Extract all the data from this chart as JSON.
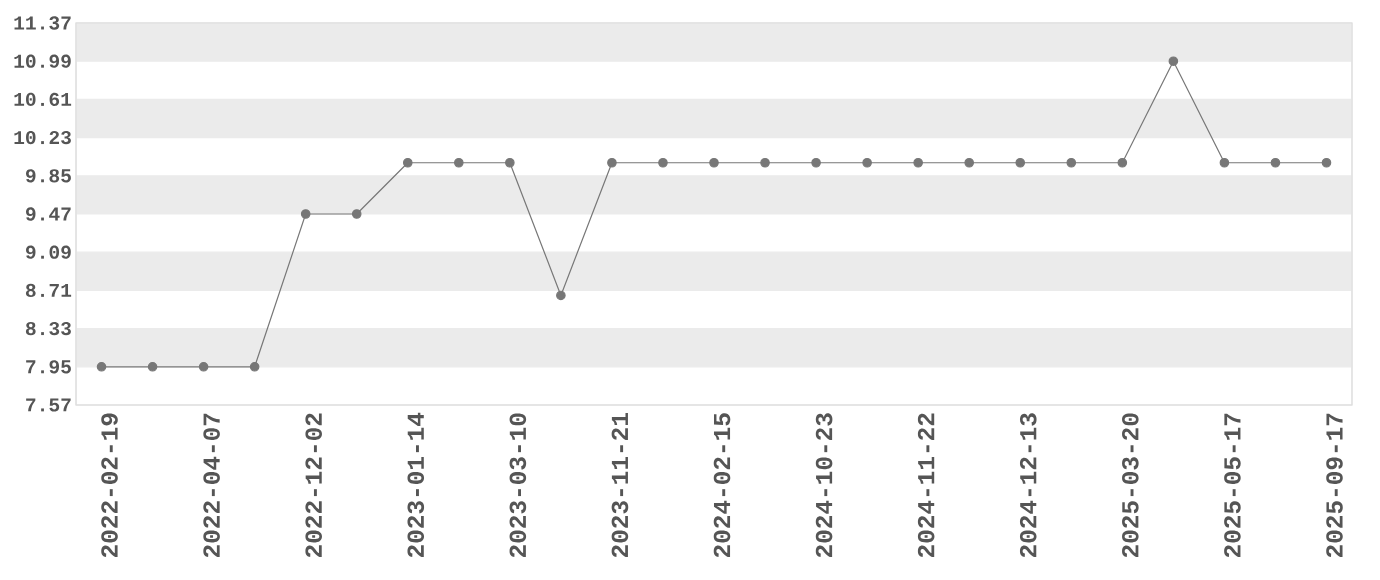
{
  "chart_data": {
    "type": "line",
    "categories": [
      "2022-02-19",
      null,
      "2022-04-07",
      null,
      "2022-12-02",
      null,
      "2023-01-14",
      null,
      "2023-03-10",
      null,
      "2023-11-21",
      null,
      "2024-02-15",
      null,
      "2024-10-23",
      null,
      "2024-11-22",
      null,
      "2024-12-13",
      null,
      "2025-03-20",
      null,
      "2025-05-17",
      null,
      "2025-09-17"
    ],
    "values": [
      7.95,
      7.95,
      7.95,
      7.95,
      9.47,
      9.47,
      9.98,
      9.98,
      9.98,
      8.66,
      9.98,
      9.98,
      9.98,
      9.98,
      9.98,
      9.98,
      9.98,
      9.98,
      9.98,
      9.98,
      9.98,
      10.99,
      9.98,
      9.98,
      9.98
    ],
    "color": "#777777",
    "ylim": [
      7.57,
      11.37
    ],
    "yticks": [
      7.57,
      7.95,
      8.33,
      8.71,
      9.09,
      9.47,
      9.85,
      10.23,
      10.61,
      10.99,
      11.37
    ],
    "grid": "y",
    "marker": "circle",
    "line_style": "solid"
  }
}
